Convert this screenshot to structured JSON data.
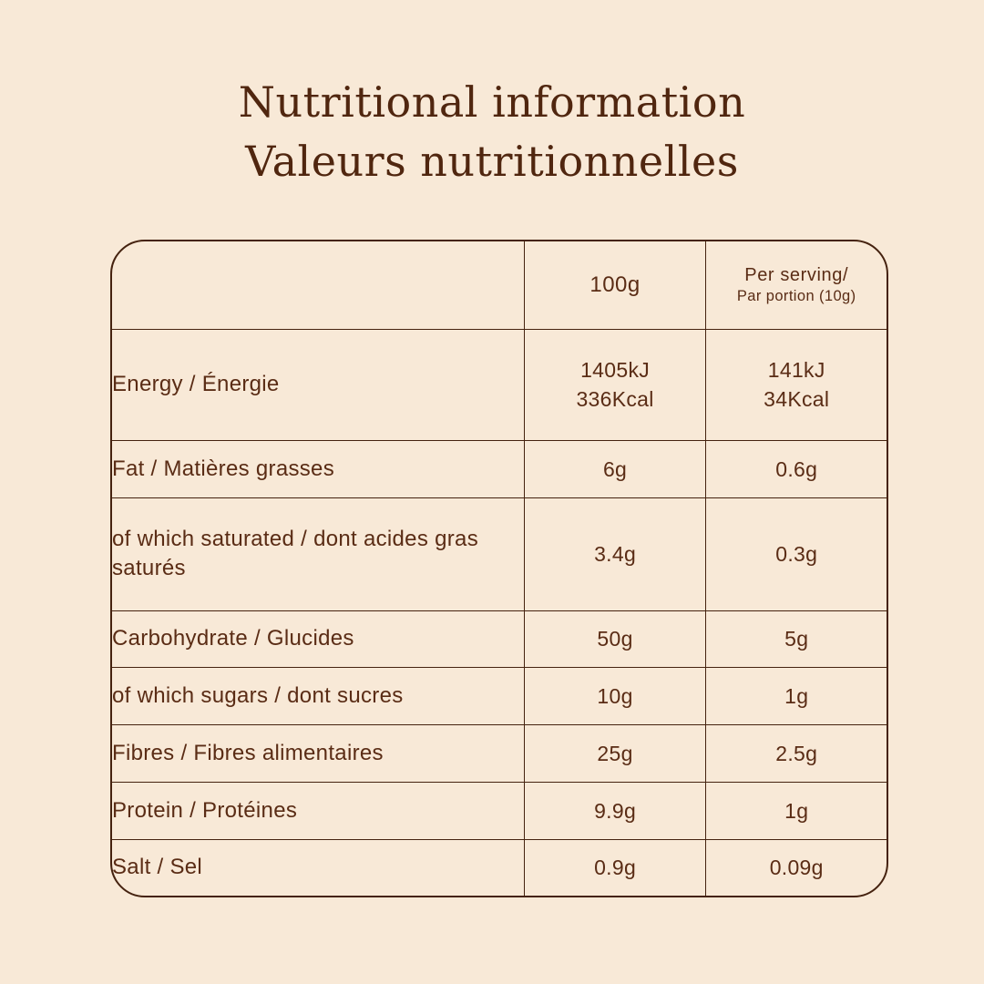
{
  "page": {
    "background_color": "#f8e9d7",
    "text_color": "#5a2c15",
    "border_color": "#45220f",
    "title_color": "#50260f"
  },
  "title": {
    "line1": "Nutritional information",
    "line2": "Valeurs nutritionnelles"
  },
  "table": {
    "header": {
      "label_col": "",
      "per_100g": "100g",
      "per_serving_line1": "Per serving/",
      "per_serving_line2": "Par portion (10g)"
    },
    "rows": [
      {
        "label": "Energy / Énergie",
        "per_100g": "1405kJ\n336Kcal",
        "per_serving": "141kJ\n34Kcal"
      },
      {
        "label": "Fat / Matières grasses",
        "per_100g": "6g",
        "per_serving": "0.6g"
      },
      {
        "label": "of which saturated / dont acides gras saturés",
        "per_100g": "3.4g",
        "per_serving": "0.3g"
      },
      {
        "label": "Carbohydrate / Glucides",
        "per_100g": "50g",
        "per_serving": "5g"
      },
      {
        "label": "of which sugars / dont sucres",
        "per_100g": "10g",
        "per_serving": "1g"
      },
      {
        "label": "Fibres / Fibres alimentaires",
        "per_100g": "25g",
        "per_serving": "2.5g"
      },
      {
        "label": "Protein / Protéines",
        "per_100g": "9.9g",
        "per_serving": "1g"
      },
      {
        "label": "Salt / Sel",
        "per_100g": "0.9g",
        "per_serving": "0.09g"
      }
    ]
  }
}
